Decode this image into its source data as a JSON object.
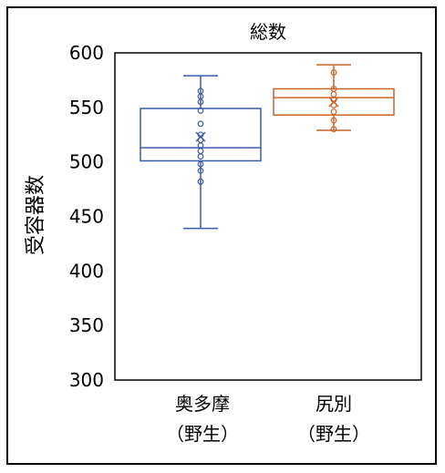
{
  "chart_data": {
    "type": "box",
    "title": "総数",
    "ylabel": "受容器数",
    "xlabel": "",
    "ylim": [
      300,
      600
    ],
    "yticks": [
      300,
      350,
      400,
      450,
      500,
      550,
      600
    ],
    "grid": false,
    "legend": "none",
    "categories": [
      {
        "line1": "奥多摩",
        "line2": "（野生）"
      },
      {
        "line1": "尻別",
        "line2": "（野生）"
      }
    ],
    "series": [
      {
        "color": "#3a5ba8",
        "min": 439,
        "q1": 501,
        "median": 513,
        "q3": 549,
        "max": 579,
        "mean": 523,
        "points": [
          565,
          560,
          555,
          547,
          535,
          525,
          520,
          515,
          510,
          505,
          498,
          492,
          482
        ]
      },
      {
        "color": "#c9662b",
        "min": 529,
        "q1": 543,
        "median": 559,
        "q3": 567,
        "max": 589,
        "mean": 555,
        "points": [
          582,
          567,
          562,
          557,
          552,
          546,
          538,
          530
        ]
      }
    ]
  }
}
